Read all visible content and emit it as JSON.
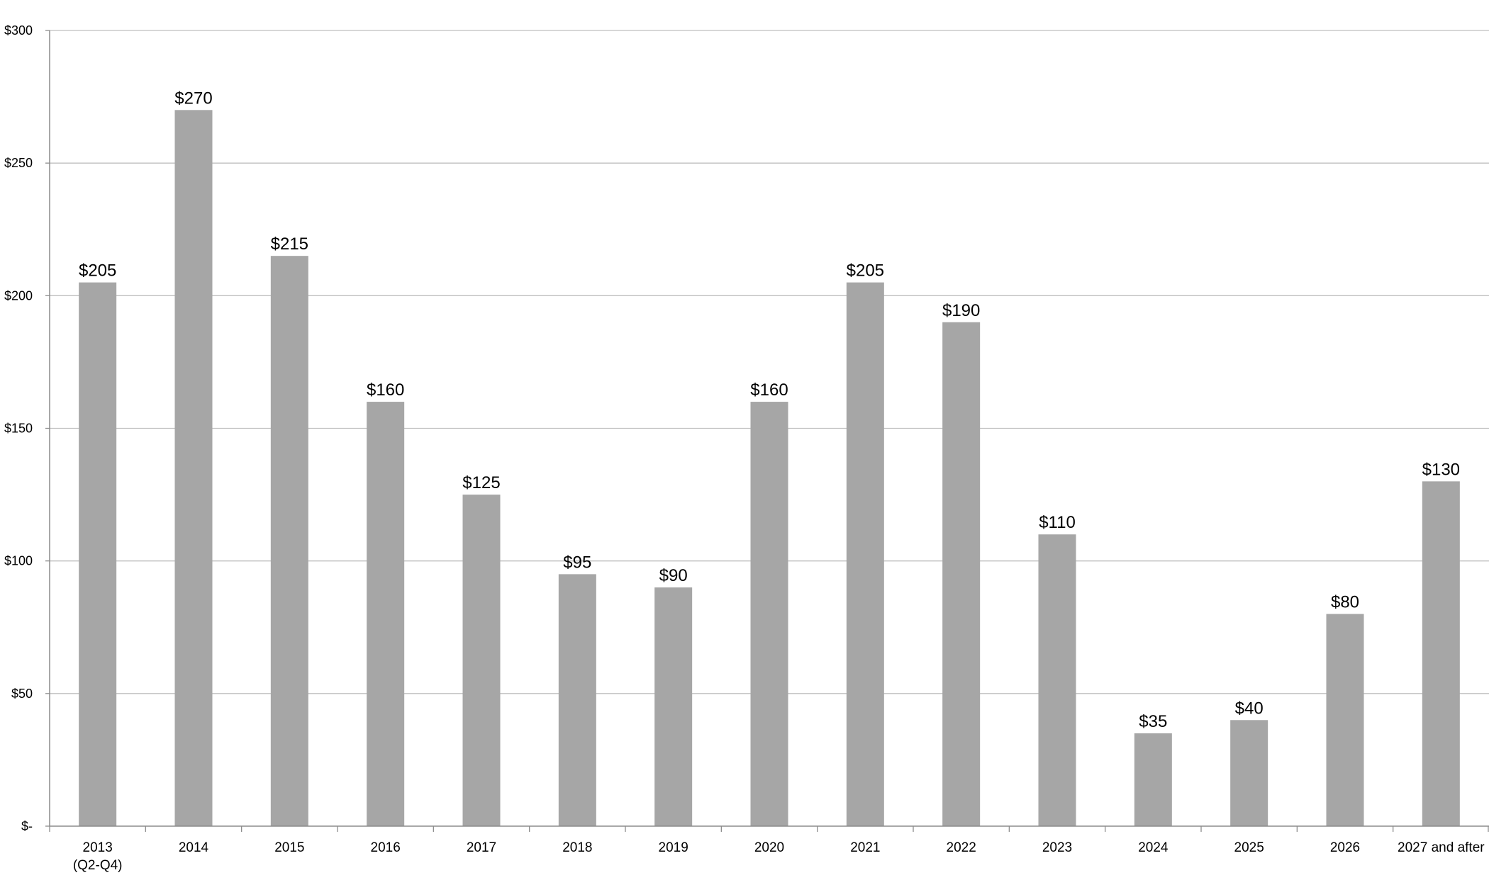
{
  "chart_data": {
    "type": "bar",
    "title": "",
    "xlabel": "",
    "ylabel": "",
    "categories": [
      [
        "2013",
        "(Q2-Q4)"
      ],
      [
        "2014"
      ],
      [
        "2015"
      ],
      [
        "2016"
      ],
      [
        "2017"
      ],
      [
        "2018"
      ],
      [
        "2019"
      ],
      [
        "2020"
      ],
      [
        "2021"
      ],
      [
        "2022"
      ],
      [
        "2023"
      ],
      [
        "2024"
      ],
      [
        "2025"
      ],
      [
        "2026"
      ],
      [
        "2027 and after"
      ]
    ],
    "values": [
      205,
      270,
      215,
      160,
      125,
      95,
      90,
      160,
      205,
      190,
      110,
      35,
      40,
      80,
      130
    ],
    "value_labels": [
      "$205",
      "$270",
      "$215",
      "$160",
      "$125",
      "$95",
      "$90",
      "$160",
      "$205",
      "$190",
      "$110",
      "$35",
      "$40",
      "$80",
      "$130"
    ],
    "ylim": [
      0,
      300
    ],
    "y_ticks": [
      0,
      50,
      100,
      150,
      200,
      250,
      300
    ],
    "y_tick_labels": [
      "$-",
      "$50",
      "$100",
      "$150",
      "$200",
      "$250",
      "$300"
    ],
    "grid": true,
    "legend": "none",
    "colors": {
      "bar": "#a6a6a6",
      "grid": "#bfbfbf",
      "axis": "#8c8c8c"
    }
  }
}
